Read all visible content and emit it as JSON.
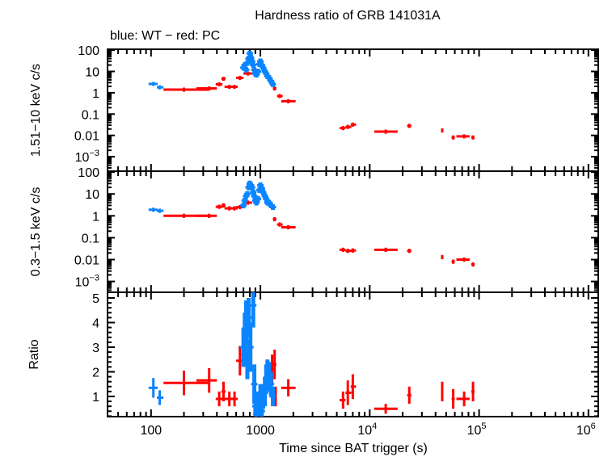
{
  "chart_data": {
    "type": "scatter",
    "title": "Hardness ratio of GRB 141031A",
    "subtitle": "blue: WT − red: PC",
    "xlabel": "Time since BAT trigger (s)",
    "xscale": "log",
    "xlim": [
      40,
      1230000
    ],
    "x_ticks": [
      {
        "v": 100,
        "label": "100"
      },
      {
        "v": 1000,
        "label": "1000"
      },
      {
        "v": 10000,
        "label": "10",
        "sup": "4"
      },
      {
        "v": 100000,
        "label": "10",
        "sup": "5"
      },
      {
        "v": 1000000,
        "label": "10",
        "sup": "6"
      }
    ],
    "colors": {
      "WT": "#0b84ff",
      "PC": "#ff0000"
    },
    "grid": false,
    "panels": [
      {
        "key": "hard",
        "ylabel": "1.51−10 keV c/s",
        "yscale": "log",
        "ylim": [
          0.00021,
          110
        ],
        "y_ticks": [
          {
            "v": 100,
            "label": "100"
          },
          {
            "v": 10,
            "label": "10"
          },
          {
            "v": 1,
            "label": "1"
          },
          {
            "v": 0.1,
            "label": "0.1"
          },
          {
            "v": 0.01,
            "label": "0.01"
          },
          {
            "v": 0.001,
            "label": "10",
            "sup": "−3"
          }
        ],
        "WT": [
          [
            105,
            2.6,
            95,
            115
          ],
          [
            120,
            1.8,
            113,
            130
          ],
          [
            700,
            15
          ],
          [
            720,
            20
          ],
          [
            740,
            12
          ],
          [
            760,
            25
          ],
          [
            780,
            40
          ],
          [
            800,
            70
          ],
          [
            820,
            45
          ],
          [
            840,
            30
          ],
          [
            860,
            20
          ],
          [
            880,
            12
          ],
          [
            900,
            8
          ],
          [
            920,
            7
          ],
          [
            950,
            10
          ],
          [
            980,
            22
          ],
          [
            1000,
            30
          ],
          [
            1030,
            20
          ],
          [
            1060,
            15
          ],
          [
            1100,
            10
          ],
          [
            1130,
            8
          ],
          [
            1160,
            6
          ],
          [
            1200,
            5
          ],
          [
            1250,
            3.5
          ],
          [
            1300,
            2.5
          ]
        ],
        "PC": [
          [
            200,
            1.4,
            130,
            340
          ],
          [
            340,
            1.6,
            260,
            400
          ],
          [
            420,
            2.5,
            390,
            450
          ],
          [
            460,
            4.5,
            440,
            480
          ],
          [
            520,
            1.9,
            470,
            560
          ],
          [
            580,
            1.9,
            540,
            620
          ],
          [
            650,
            5,
            600,
            700
          ],
          [
            770,
            8,
            700,
            840
          ],
          [
            1280,
            3,
            1260,
            1300
          ],
          [
            1350,
            1.6,
            1300,
            1400
          ],
          [
            1500,
            0.7,
            1420,
            1600
          ],
          [
            1800,
            0.4,
            1550,
            2100
          ],
          [
            5700,
            0.022,
            5300,
            6000
          ],
          [
            6300,
            0.025,
            6000,
            6800
          ],
          [
            7000,
            0.032,
            6700,
            7500
          ],
          [
            14000,
            0.015,
            11000,
            18000
          ],
          [
            23000,
            0.028,
            22000,
            24000
          ],
          [
            46000,
            0.017,
            45000,
            47000
          ],
          [
            58000,
            0.008,
            56000,
            60000
          ],
          [
            73000,
            0.009,
            62000,
            82000
          ],
          [
            88000,
            0.008,
            85000,
            91000
          ]
        ]
      },
      {
        "key": "soft",
        "ylabel": "0.3−1.5 keV c/s",
        "yscale": "log",
        "ylim": [
          0.00032,
          110
        ],
        "y_ticks": [
          {
            "v": 100,
            "label": "100"
          },
          {
            "v": 10,
            "label": "10"
          },
          {
            "v": 1,
            "label": "1"
          },
          {
            "v": 0.1,
            "label": "0.1"
          },
          {
            "v": 0.01,
            "label": "0.01"
          },
          {
            "v": 0.001,
            "label": "10",
            "sup": "−3"
          }
        ],
        "WT": [
          [
            105,
            1.9,
            95,
            115
          ],
          [
            120,
            1.7,
            113,
            130
          ],
          [
            700,
            3
          ],
          [
            720,
            5
          ],
          [
            740,
            8
          ],
          [
            760,
            10
          ],
          [
            780,
            20
          ],
          [
            800,
            30
          ],
          [
            820,
            25
          ],
          [
            840,
            20
          ],
          [
            860,
            12
          ],
          [
            880,
            8
          ],
          [
            900,
            5
          ],
          [
            920,
            4
          ],
          [
            950,
            6
          ],
          [
            980,
            15
          ],
          [
            1000,
            25
          ],
          [
            1030,
            18
          ],
          [
            1060,
            12
          ],
          [
            1100,
            8
          ],
          [
            1130,
            6
          ],
          [
            1160,
            4
          ],
          [
            1200,
            4
          ],
          [
            1250,
            3
          ],
          [
            1300,
            2.5
          ]
        ],
        "PC": [
          [
            200,
            1.0,
            130,
            340
          ],
          [
            340,
            1.0,
            260,
            400
          ],
          [
            420,
            2.6,
            390,
            450
          ],
          [
            460,
            3,
            440,
            480
          ],
          [
            520,
            2.2,
            470,
            560
          ],
          [
            580,
            2.2,
            540,
            620
          ],
          [
            650,
            2.5,
            600,
            700
          ],
          [
            770,
            4,
            700,
            840
          ],
          [
            1280,
            2.5,
            1260,
            1300
          ],
          [
            1350,
            0.7,
            1300,
            1400
          ],
          [
            1500,
            0.4,
            1420,
            1600
          ],
          [
            1800,
            0.3,
            1550,
            2100
          ],
          [
            5700,
            0.028,
            5300,
            6000
          ],
          [
            6300,
            0.025,
            6000,
            6800
          ],
          [
            7000,
            0.026,
            6700,
            7500
          ],
          [
            14000,
            0.028,
            11000,
            18000
          ],
          [
            23000,
            0.025,
            22000,
            24000
          ],
          [
            46000,
            0.013,
            45000,
            47000
          ],
          [
            58000,
            0.008,
            56000,
            60000
          ],
          [
            73000,
            0.01,
            62000,
            82000
          ],
          [
            88000,
            0.006,
            85000,
            91000
          ]
        ]
      },
      {
        "key": "ratio",
        "ylabel": "Ratio",
        "yscale": "linear",
        "ylim": [
          0.18,
          5.23
        ],
        "y_ticks": [
          {
            "v": 1,
            "label": "1"
          },
          {
            "v": 2,
            "label": "2"
          },
          {
            "v": 3,
            "label": "3"
          },
          {
            "v": 4,
            "label": "4"
          },
          {
            "v": 5,
            "label": "5"
          }
        ],
        "WT": [
          [
            105,
            1.35,
            95,
            115,
            0.4
          ],
          [
            120,
            0.95,
            113,
            130,
            0.3
          ],
          [
            700,
            3.0,
            null,
            null,
            0.8
          ],
          [
            720,
            3.5,
            null,
            null,
            0.9
          ],
          [
            740,
            4.0,
            null,
            null,
            0.9
          ],
          [
            760,
            2.5,
            null,
            null,
            0.8
          ],
          [
            780,
            4.2,
            null,
            null,
            0.8
          ],
          [
            810,
            3.0,
            null,
            null,
            1.0
          ],
          [
            860,
            4.7,
            null,
            null,
            0.9
          ],
          [
            880,
            1.5,
            null,
            null,
            0.8
          ],
          [
            900,
            0.6,
            null,
            null,
            0.4
          ],
          [
            920,
            0.3,
            null,
            null,
            0.2
          ],
          [
            950,
            0.8,
            null,
            null,
            0.4
          ],
          [
            980,
            0.5,
            null,
            null,
            0.3
          ],
          [
            1000,
            1.0,
            null,
            null,
            0.5
          ],
          [
            1030,
            0.4,
            null,
            null,
            0.3
          ],
          [
            1060,
            1.0,
            null,
            null,
            0.5
          ],
          [
            1100,
            1.2,
            null,
            null,
            0.6
          ],
          [
            1130,
            1.7,
            null,
            null,
            0.6
          ],
          [
            1160,
            2.0,
            null,
            null,
            0.5
          ],
          [
            1200,
            1.8,
            null,
            null,
            0.6
          ],
          [
            1250,
            1.5,
            null,
            null,
            0.5
          ],
          [
            1300,
            1.0,
            null,
            null,
            0.4
          ]
        ],
        "PC": [
          [
            200,
            1.55,
            130,
            340,
            0.5
          ],
          [
            340,
            1.65,
            260,
            400,
            0.5
          ],
          [
            420,
            0.9,
            390,
            450,
            0.3
          ],
          [
            460,
            1.2,
            440,
            480,
            0.4
          ],
          [
            520,
            0.9,
            470,
            560,
            0.3
          ],
          [
            580,
            0.9,
            540,
            620,
            0.3
          ],
          [
            650,
            2.45,
            600,
            700,
            0.6
          ],
          [
            700,
            2.7,
            670,
            740,
            0.5
          ],
          [
            1280,
            2.1,
            1240,
            1320,
            0.6
          ],
          [
            1350,
            2.3,
            1300,
            1400,
            0.6
          ],
          [
            1380,
            1.0,
            1360,
            1400,
            0.4
          ],
          [
            1800,
            1.35,
            1550,
            2100,
            0.35
          ],
          [
            5700,
            0.85,
            5300,
            6000,
            0.35
          ],
          [
            6300,
            1.15,
            6000,
            6800,
            0.5
          ],
          [
            7000,
            1.4,
            6700,
            7500,
            0.5
          ],
          [
            14000,
            0.5,
            11000,
            18000,
            0.2
          ],
          [
            23000,
            1.05,
            22000,
            24000,
            0.35
          ],
          [
            46000,
            1.2,
            45000,
            47000,
            0.4
          ],
          [
            58000,
            0.9,
            56000,
            60000,
            0.4
          ],
          [
            73000,
            0.9,
            62000,
            82000,
            0.3
          ],
          [
            88000,
            1.2,
            85000,
            91000,
            0.4
          ]
        ]
      }
    ]
  }
}
